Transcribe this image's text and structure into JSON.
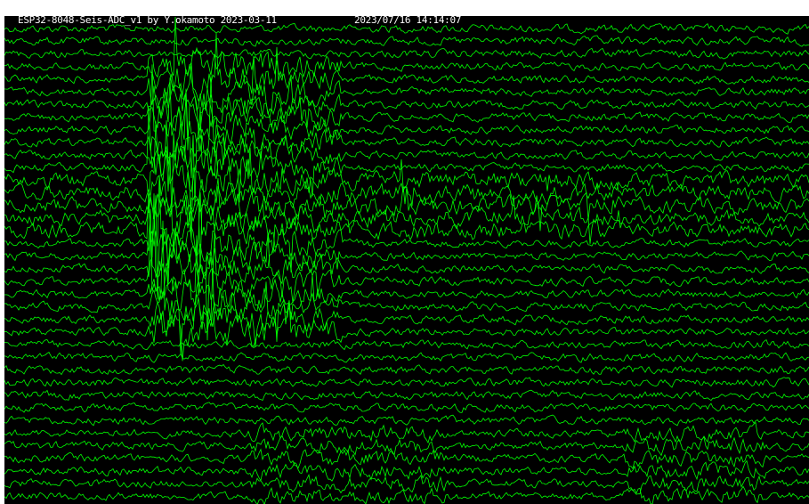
{
  "header": {
    "title": "ESP32-8048-Seis-ADC_v1 by Y.okamoto 2023-03-11",
    "timestamp": "2023/07/16 14:14:07"
  }
}
